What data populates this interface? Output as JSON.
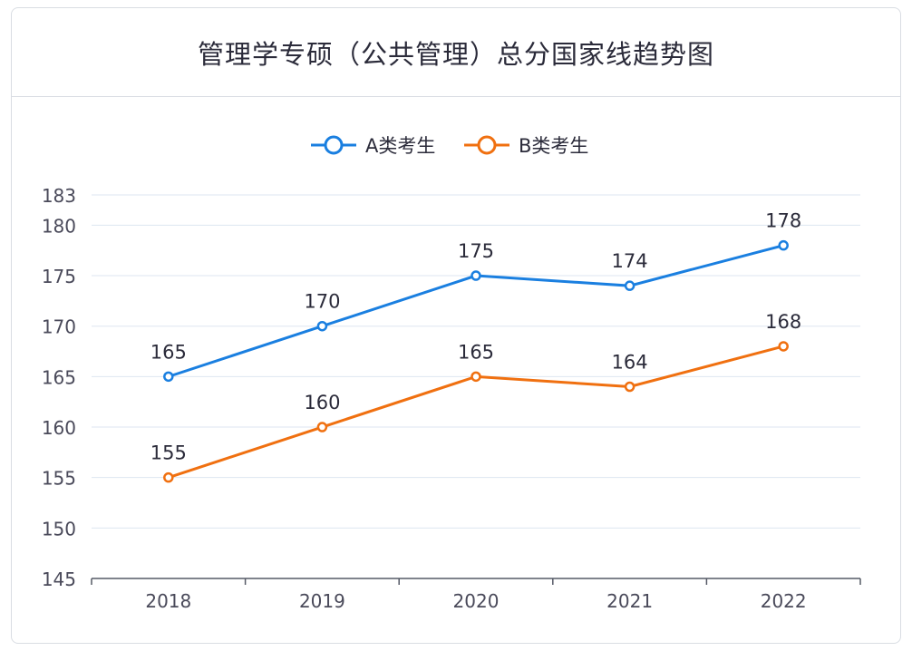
{
  "chart_data": {
    "type": "line",
    "title": "管理学专硕（公共管理）总分国家线趋势图",
    "categories": [
      "2018",
      "2019",
      "2020",
      "2021",
      "2022"
    ],
    "series": [
      {
        "name": "A类考生",
        "values": [
          165,
          170,
          175,
          174,
          178
        ],
        "color": "#1a7fe0"
      },
      {
        "name": "B类考生",
        "values": [
          155,
          160,
          165,
          164,
          168
        ],
        "color": "#f07010"
      }
    ],
    "yticks": [
      145,
      150,
      155,
      160,
      165,
      170,
      175,
      180,
      183
    ],
    "ylim": [
      145,
      183
    ],
    "grid": true,
    "legend": "top"
  }
}
